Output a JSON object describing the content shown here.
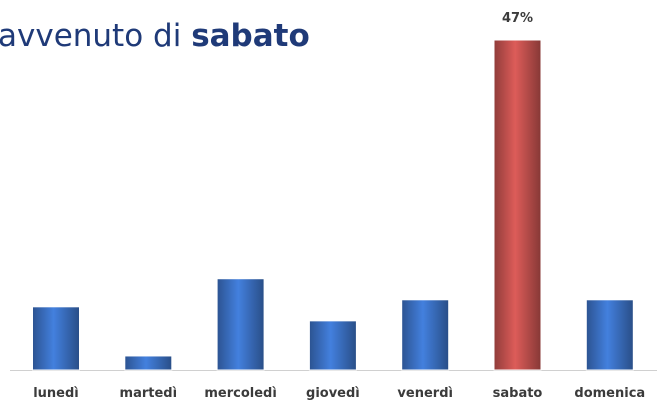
{
  "chart_data": {
    "type": "bar",
    "title": {
      "text": "avvenuto di",
      "bold": "sabato"
    },
    "categories": [
      "lunedì",
      "martedì",
      "mercoledì",
      "giovedì",
      "venerdì",
      "sabato",
      "domenica"
    ],
    "values": [
      9,
      2,
      13,
      7,
      10,
      47,
      10
    ],
    "value_labels": [
      null,
      null,
      null,
      null,
      null,
      "47%",
      null
    ],
    "colors": [
      "#3a6fc1",
      "#3a6fc1",
      "#3a6fc1",
      "#3a6fc1",
      "#3a6fc1",
      "#c0504d",
      "#3a6fc1"
    ]
  }
}
